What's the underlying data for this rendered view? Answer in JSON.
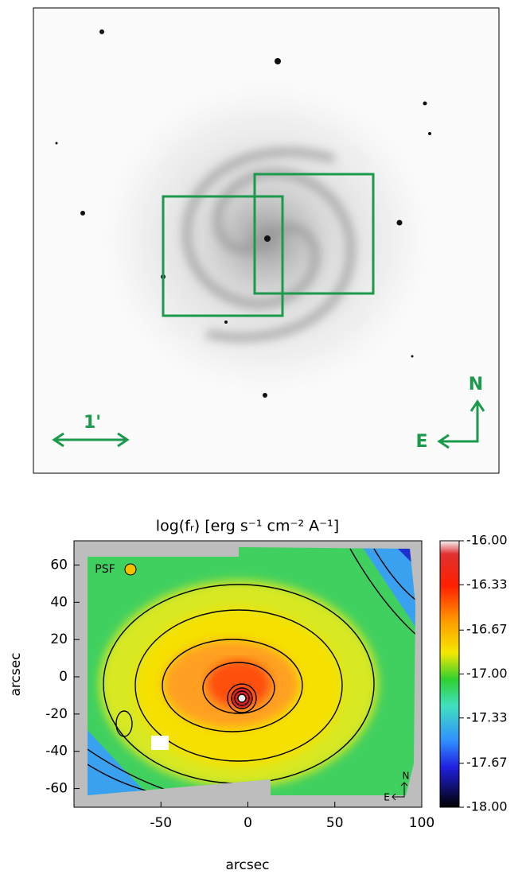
{
  "image_panel": {
    "scale_label": "1'",
    "north": "N",
    "east": "E"
  },
  "chart_data": {
    "type": "heatmap",
    "title": "log(fᵣ) [erg s⁻¹ cm⁻² A⁻¹]",
    "x_label": "arcsec",
    "y_label": "arcsec",
    "xlim": [
      -100,
      100
    ],
    "xticks": [
      -50,
      0,
      50,
      100
    ],
    "ylim": [
      -70,
      73
    ],
    "yticks": [
      -60,
      -40,
      -20,
      0,
      20,
      40,
      60
    ],
    "psf_label": "PSF",
    "north": "N",
    "east": "E",
    "colorbar": {
      "lim": [
        -18,
        -16
      ],
      "ticks": [
        {
          "value": -16,
          "label": "-16.00"
        },
        -16.33,
        -16.67,
        {
          "value": -17,
          "label": "-17.00"
        },
        -17.33,
        -17.67,
        {
          "value": -18,
          "label": "-18.00"
        }
      ]
    }
  }
}
